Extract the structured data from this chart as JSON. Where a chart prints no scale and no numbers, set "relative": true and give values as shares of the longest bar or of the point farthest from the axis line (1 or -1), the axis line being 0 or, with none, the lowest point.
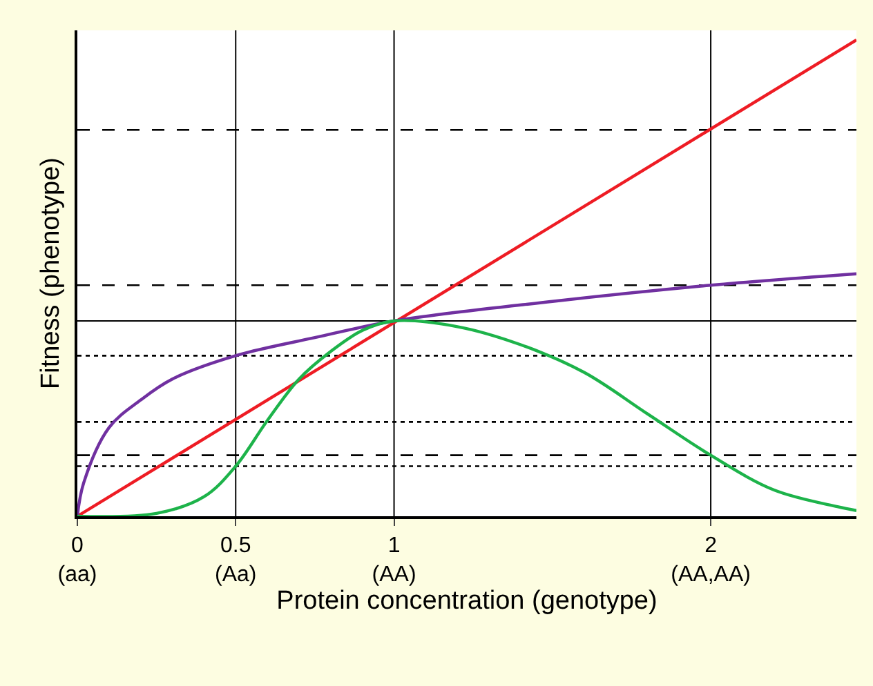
{
  "chart_data": {
    "type": "line",
    "relative": true,
    "xlabel": "Protein concentration (genotype)",
    "ylabel": "Fitness (phenotype)",
    "xlim": [
      0,
      2.46
    ],
    "xticks": [
      {
        "value": 0,
        "label": "0\n(aa)"
      },
      {
        "value": 0.5,
        "label": "0.5\n(Aa)"
      },
      {
        "value": 1,
        "label": "1\n(AA)"
      },
      {
        "value": 2,
        "label": "2\n(AA,AA)"
      }
    ],
    "tick_labels": "x",
    "marker": "none",
    "line_style": "solid",
    "series": [
      {
        "color": "#ee1c24",
        "x": [
          0,
          2.46
        ],
        "values": [
          0,
          1
        ]
      },
      {
        "color": "#7030a0",
        "x": [
          0,
          0.02,
          0.1,
          0.2,
          0.3,
          0.5,
          0.75,
          1,
          1.5,
          2,
          2.46
        ],
        "values": [
          0,
          0.07,
          0.186,
          0.244,
          0.288,
          0.337,
          0.375,
          0.41,
          0.451,
          0.485,
          0.509
        ]
      },
      {
        "color": "#1db34a",
        "x": [
          0,
          0.25,
          0.4,
          0.5,
          0.6,
          0.7,
          0.8,
          0.9,
          1,
          1.2,
          1.4,
          1.6,
          1.8,
          2,
          2.2,
          2.4,
          2.46
        ],
        "values": [
          0,
          0.006,
          0.041,
          0.105,
          0.201,
          0.288,
          0.346,
          0.39,
          0.41,
          0.398,
          0.36,
          0.302,
          0.215,
          0.128,
          0.055,
          0.02,
          0.012
        ]
      }
    ],
    "ref_lines": [
      {
        "axis": "y",
        "value": 0.811,
        "color": "#000000",
        "line_style": "dashed"
      },
      {
        "axis": "y",
        "value": 0.485,
        "color": "#000000",
        "line_style": "dashed"
      },
      {
        "axis": "y",
        "value": 0.128,
        "color": "#000000",
        "line_style": "dashed"
      },
      {
        "axis": "y",
        "value": 0.41,
        "color": "#000000",
        "line_style": "solid"
      },
      {
        "axis": "y",
        "value": 0.337,
        "color": "#000000",
        "line_style": "dotted"
      },
      {
        "axis": "y",
        "value": 0.198,
        "color": "#000000",
        "line_style": "dotted"
      },
      {
        "axis": "y",
        "value": 0.105,
        "color": "#000000",
        "line_style": "dotted"
      },
      {
        "axis": "x",
        "value": 0.5,
        "color": "#000000",
        "line_style": "solid"
      },
      {
        "axis": "x",
        "value": 1,
        "color": "#000000",
        "line_style": "solid"
      },
      {
        "axis": "x",
        "value": 2,
        "color": "#000000",
        "line_style": "solid"
      }
    ]
  }
}
